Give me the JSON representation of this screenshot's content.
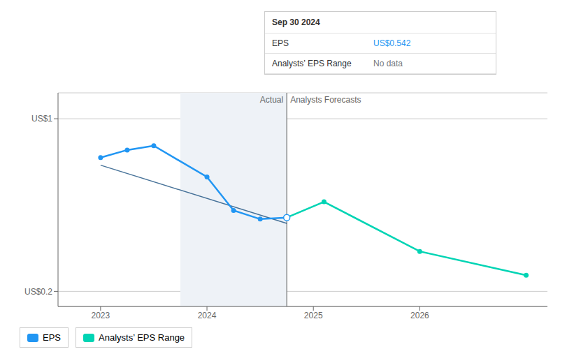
{
  "chart_data": {
    "type": "line",
    "series": [
      {
        "name": "EPS",
        "color": "#2196f3",
        "marker": "o",
        "x": [
          2023.0,
          2023.25,
          2023.5,
          2024.0,
          2024.25,
          2024.5,
          2024.75
        ],
        "values": [
          0.82,
          0.855,
          0.875,
          0.73,
          0.575,
          0.535,
          0.542
        ]
      },
      {
        "name": "Analysts’ EPS Range",
        "color": "#00d4b4",
        "marker": "o",
        "x": [
          2024.75,
          2025.1,
          2026.0,
          2027.0
        ],
        "values": [
          0.542,
          0.615,
          0.385,
          0.275
        ]
      },
      {
        "color": "#1a5080",
        "x": [
          2023.0,
          2024.75
        ],
        "values": [
          0.785,
          0.515
        ]
      }
    ],
    "xlim": [
      2022.6,
      2027.2
    ],
    "xticks": [
      2023,
      2024,
      2025,
      2026
    ],
    "ylim": [
      0.13,
      1.12
    ],
    "yticks": [
      {
        "value": 0.2,
        "label": "US$0.2"
      },
      {
        "value": 1,
        "label": "US$1"
      }
    ],
    "grid": true,
    "legend": "bottom",
    "divider_x": 2024.75,
    "highlight_x": [
      2023.75,
      2024.75
    ],
    "region_labels": [
      "Actual",
      "Analysts Forecasts"
    ],
    "tooltip": {
      "title": "Sep 30 2024",
      "rows": [
        {
          "label": "EPS",
          "value": "US$0.542"
        },
        {
          "label": "Analysts’ EPS Range",
          "value": "No data"
        }
      ]
    }
  }
}
